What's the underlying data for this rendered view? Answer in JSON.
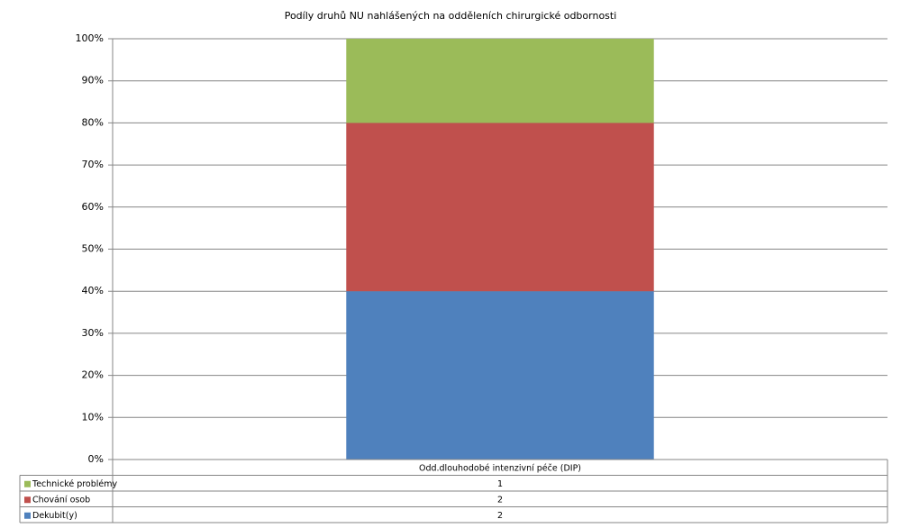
{
  "chart_data": {
    "type": "stacked_percent_bar",
    "title": "Podíly druhů NU  nahlášených na odděleních chirurgické odbornosti",
    "categories": [
      "Odd.dlouhodobé intenzivní péče (DIP)"
    ],
    "series": [
      {
        "name": "Dekubit(y)",
        "color": "#4f81bd",
        "values": [
          2
        ]
      },
      {
        "name": "Chování osob",
        "color": "#c0504d",
        "values": [
          2
        ]
      },
      {
        "name": "Technické problémy",
        "color": "#9bbb59",
        "values": [
          1
        ]
      }
    ],
    "ylim": [
      0,
      100
    ],
    "yticks": [
      {
        "value": 0,
        "label": "0%"
      },
      {
        "value": 10,
        "label": "10%"
      },
      {
        "value": 20,
        "label": "20%"
      },
      {
        "value": 30,
        "label": "30%"
      },
      {
        "value": 40,
        "label": "40%"
      },
      {
        "value": 50,
        "label": "50%"
      },
      {
        "value": 60,
        "label": "60%"
      },
      {
        "value": 70,
        "label": "70%"
      },
      {
        "value": 80,
        "label": "80%"
      },
      {
        "value": 90,
        "label": "90%"
      },
      {
        "value": 100,
        "label": "100%"
      }
    ],
    "grid": true
  }
}
